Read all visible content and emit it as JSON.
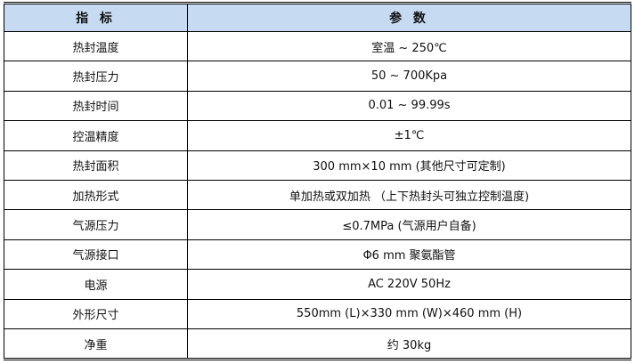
{
  "table": {
    "headers": [
      "指 标",
      "参 数"
    ],
    "rows": [
      [
        "热封温度",
        "室温 ~ 250℃"
      ],
      [
        "热封压力",
        "50 ~ 700Kpa"
      ],
      [
        "热封时间",
        "0.01 ~ 99.99s"
      ],
      [
        "控温精度",
        "±1℃"
      ],
      [
        "热封面积",
        "300 mm×10 mm (其他尺寸可定制)"
      ],
      [
        "加热形式",
        "单加热或双加热 （上下热封头可独立控制温度)"
      ],
      [
        "气源压力",
        "≤0.7MPa (气源用户自备)"
      ],
      [
        "气源接口",
        "Φ6 mm 聚氨酯管"
      ],
      [
        "电源",
        "AC 220V 50Hz"
      ],
      [
        "外形尺寸",
        "550mm (L)×330 mm (W)×460 mm (H)"
      ],
      [
        "净重",
        "约 30kg"
      ]
    ]
  },
  "colors": {
    "header_bg": "#c6daf1"
  }
}
